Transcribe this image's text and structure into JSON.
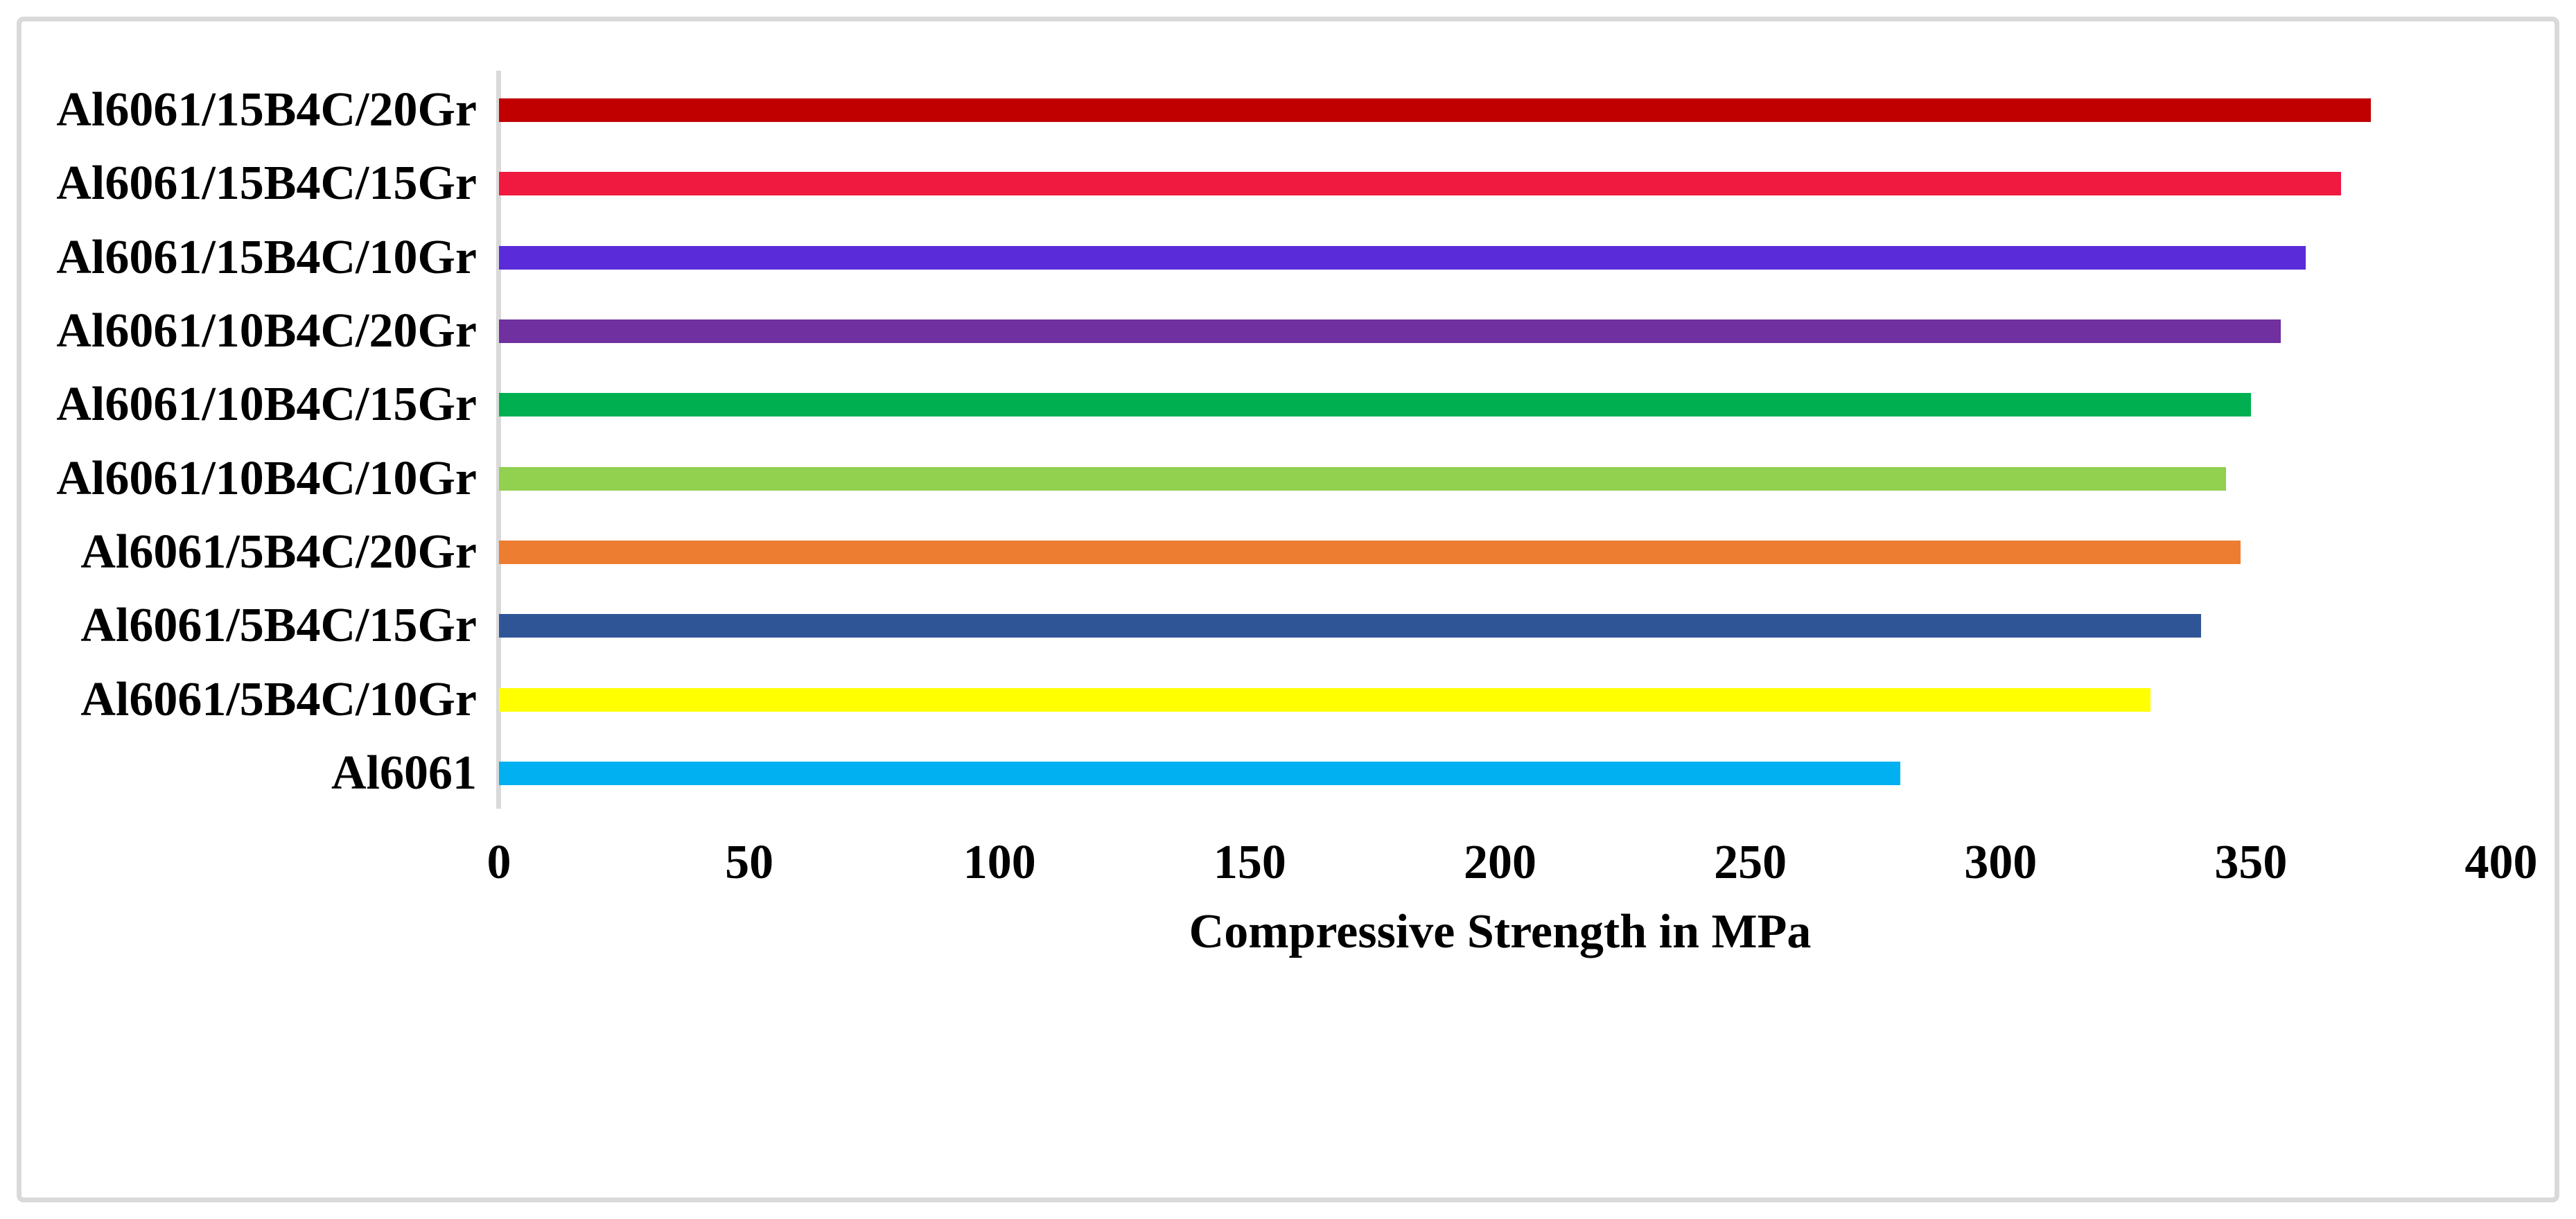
{
  "chart_data": {
    "type": "bar",
    "orientation": "horizontal",
    "title": "",
    "xlabel": "Compressive Strength in MPa",
    "ylabel": "",
    "xlim": [
      0,
      400
    ],
    "x_tick_labels": [
      "0",
      "50",
      "100",
      "150",
      "200",
      "250",
      "300",
      "350",
      "400"
    ],
    "x_tick_values": [
      0,
      50,
      100,
      150,
      200,
      250,
      300,
      350,
      400
    ],
    "grid": false,
    "legend_position": "none",
    "categories": [
      "Al6061/15B4C/20Gr",
      "Al6061/15B4C/15Gr",
      "Al6061/15B4C/10Gr",
      "Al6061/10B4C/20Gr",
      "Al6061/10B4C/15Gr",
      "Al6061/10B4C/10Gr",
      "Al6061/5B4C/20Gr",
      "Al6061/5B4C/15Gr",
      "Al6061/5B4C/10Gr",
      "Al6061"
    ],
    "values": [
      374,
      368,
      361,
      356,
      350,
      345,
      348,
      340,
      330,
      280
    ],
    "bar_colors": [
      "#C00000",
      "#F01940",
      "#5A2BD9",
      "#7030A0",
      "#00B050",
      "#92D050",
      "#ED7D31",
      "#2F5597",
      "#FFFF00",
      "#00B0F0"
    ],
    "axis_line_color": "#D9D9D9",
    "frame_border_color": "#D9D9D9",
    "text_color": "#000000"
  }
}
